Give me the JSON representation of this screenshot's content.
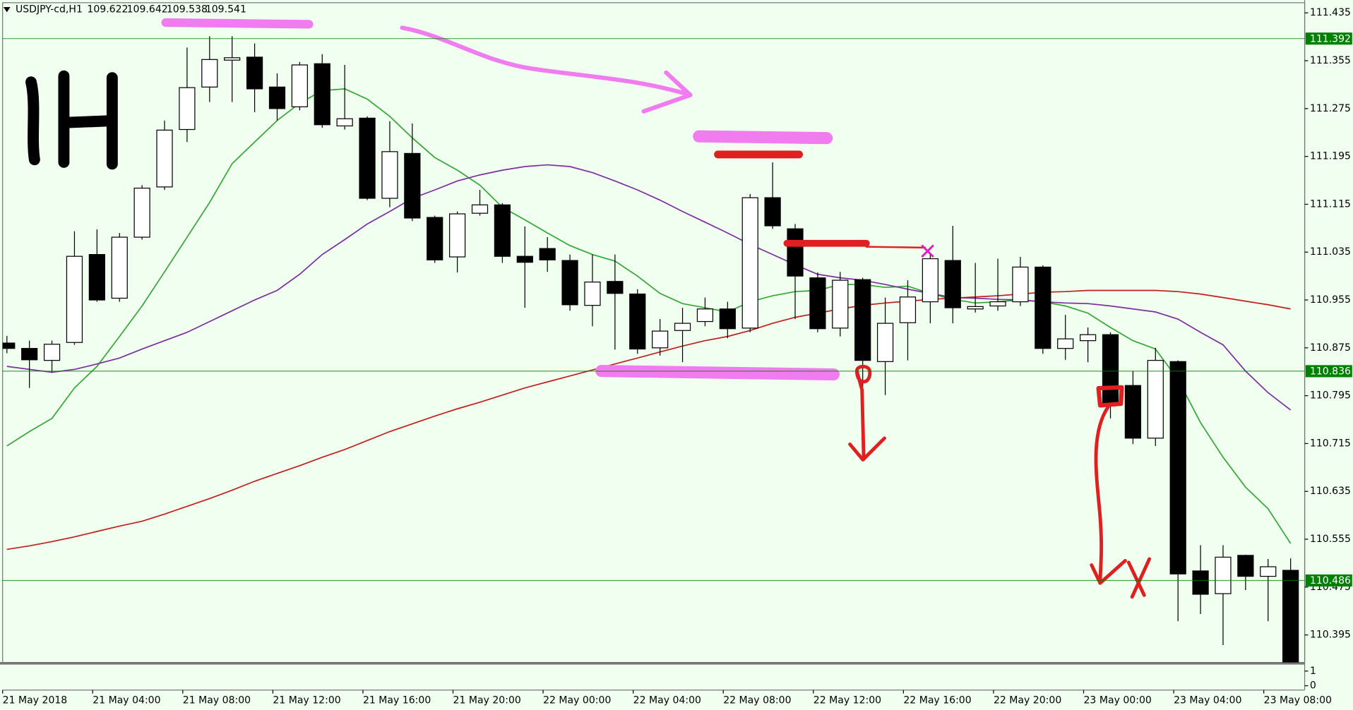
{
  "chart_data": {
    "type": "candlestick",
    "header": {
      "symbol": "USDJPY-cd,H1",
      "ohlc": [
        109.622,
        109.642,
        109.538,
        109.541
      ]
    },
    "categories": [
      "21 May 2018",
      null,
      null,
      null,
      "21 May 04:00",
      null,
      null,
      null,
      "21 May 08:00",
      null,
      null,
      null,
      "21 May 12:00",
      null,
      null,
      null,
      "21 May 16:00",
      null,
      null,
      null,
      "21 May 20:00",
      null,
      null,
      null,
      "22 May 00:00",
      null,
      null,
      null,
      "22 May 04:00",
      null,
      null,
      null,
      "22 May 08:00",
      null,
      null,
      null,
      "22 May 12:00",
      null,
      null,
      null,
      "22 May 16:00",
      null,
      null,
      null,
      "22 May 20:00",
      null,
      null,
      null,
      "23 May 00:00",
      null,
      null,
      null,
      "23 May 04:00",
      null,
      null,
      null,
      "23 May 08:00",
      null
    ],
    "open": [
      110.883,
      110.874,
      110.854,
      110.884,
      111.031,
      110.958,
      111.06,
      111.144,
      111.24,
      111.311,
      111.356,
      111.361,
      111.311,
      111.278,
      111.35,
      111.246,
      111.259,
      111.125,
      111.2,
      111.093,
      111.027,
      111.1,
      111.114,
      111.028,
      111.041,
      111.021,
      110.946,
      110.986,
      110.965,
      110.875,
      110.904,
      110.919,
      110.94,
      110.908,
      111.126,
      111.074,
      110.992,
      110.908,
      110.989,
      110.852,
      110.917,
      110.952,
      111.021,
      110.94,
      110.945,
      110.952,
      111.01,
      110.874,
      110.887,
      110.897,
      110.812,
      110.724,
      110.852,
      110.502,
      110.464,
      110.528,
      110.493,
      110.503
    ],
    "high": [
      110.895,
      110.887,
      110.887,
      111.07,
      111.073,
      111.067,
      111.147,
      111.255,
      111.377,
      111.396,
      111.396,
      111.384,
      111.334,
      111.353,
      111.366,
      111.348,
      111.262,
      111.254,
      111.25,
      111.096,
      111.103,
      111.139,
      111.117,
      111.078,
      111.06,
      111.031,
      111.031,
      111.031,
      110.973,
      110.923,
      110.942,
      110.959,
      110.952,
      111.132,
      111.185,
      111.082,
      111.001,
      111.002,
      110.992,
      110.959,
      110.988,
      111.031,
      111.079,
      111.017,
      111.024,
      111.027,
      111.013,
      110.93,
      110.909,
      110.901,
      110.836,
      110.875,
      110.854,
      110.545,
      110.545,
      110.529,
      110.522,
      110.523
    ],
    "low": [
      110.866,
      110.808,
      110.834,
      110.88,
      110.952,
      110.952,
      111.056,
      111.139,
      111.219,
      111.286,
      111.286,
      111.269,
      111.255,
      111.272,
      111.243,
      111.24,
      111.122,
      111.11,
      111.087,
      111.017,
      111.001,
      111.096,
      111.017,
      110.942,
      111.002,
      110.937,
      110.911,
      110.872,
      110.865,
      110.862,
      110.851,
      110.911,
      110.891,
      110.901,
      111.074,
      110.923,
      110.901,
      110.894,
      110.808,
      110.796,
      110.854,
      110.916,
      110.916,
      110.934,
      110.937,
      110.945,
      110.865,
      110.855,
      110.851,
      110.757,
      110.714,
      110.711,
      110.418,
      110.43,
      110.378,
      110.47,
      110.418,
      110.349
    ],
    "close": [
      110.874,
      110.855,
      110.881,
      111.028,
      110.955,
      111.06,
      111.142,
      111.239,
      111.31,
      111.357,
      111.36,
      111.308,
      111.275,
      111.348,
      111.248,
      111.258,
      111.125,
      111.203,
      111.092,
      111.022,
      111.099,
      111.114,
      111.028,
      111.018,
      111.022,
      110.947,
      110.985,
      110.966,
      110.873,
      110.903,
      110.916,
      110.94,
      110.907,
      111.126,
      111.079,
      110.995,
      110.907,
      110.988,
      110.854,
      110.916,
      110.96,
      111.024,
      110.942,
      110.944,
      110.952,
      111.01,
      110.874,
      110.89,
      110.897,
      110.779,
      110.724,
      110.854,
      110.497,
      110.463,
      110.525,
      110.493,
      110.509,
      110.349
    ],
    "up_color": "#ffffff",
    "down_color": "#000000",
    "background": "#f0fff0",
    "series": [
      {
        "color": "#33a833",
        "values": [
          110.711,
          110.735,
          110.757,
          110.808,
          110.844,
          110.894,
          110.945,
          111.002,
          111.06,
          111.118,
          111.183,
          111.219,
          111.255,
          111.284,
          111.305,
          111.308,
          111.291,
          111.262,
          111.226,
          111.193,
          111.172,
          111.147,
          111.11,
          111.089,
          111.067,
          111.046,
          111.031,
          111.02,
          110.995,
          110.966,
          110.949,
          110.942,
          110.935,
          110.952,
          110.962,
          110.969,
          110.971,
          110.981,
          110.981,
          110.976,
          110.978,
          110.966,
          110.956,
          110.95,
          110.952,
          110.955,
          110.952,
          110.945,
          110.933,
          110.909,
          110.887,
          110.873,
          110.822,
          110.75,
          110.692,
          110.642,
          110.606,
          110.548
        ]
      },
      {
        "color": "#7b2fa0",
        "values": [
          110.844,
          110.839,
          110.834,
          110.839,
          110.848,
          110.858,
          110.873,
          110.887,
          110.901,
          110.919,
          110.937,
          110.955,
          110.971,
          110.998,
          111.031,
          111.056,
          111.082,
          111.103,
          111.125,
          111.139,
          111.154,
          111.164,
          111.172,
          111.178,
          111.181,
          111.178,
          111.168,
          111.154,
          111.139,
          111.122,
          111.103,
          111.085,
          111.067,
          111.048,
          111.031,
          111.014,
          110.998,
          110.992,
          110.988,
          110.981,
          110.973,
          110.966,
          110.959,
          110.958,
          110.956,
          110.955,
          110.952,
          110.95,
          110.949,
          110.945,
          110.94,
          110.935,
          110.923,
          110.901,
          110.88,
          110.836,
          110.8,
          110.771
        ]
      },
      {
        "color": "#c0201a",
        "values": [
          110.538,
          110.544,
          110.551,
          110.559,
          110.568,
          110.577,
          110.585,
          110.597,
          110.61,
          110.623,
          110.637,
          110.652,
          110.665,
          110.678,
          110.692,
          110.705,
          110.72,
          110.735,
          110.748,
          110.761,
          110.773,
          110.784,
          110.796,
          110.808,
          110.818,
          110.828,
          110.838,
          110.848,
          110.858,
          110.868,
          110.878,
          110.887,
          110.894,
          110.904,
          110.916,
          110.926,
          110.933,
          110.94,
          110.946,
          110.95,
          110.953,
          110.956,
          110.958,
          110.96,
          110.962,
          110.965,
          110.968,
          110.969,
          110.971,
          110.971,
          110.971,
          110.971,
          110.969,
          110.965,
          110.959,
          110.953,
          110.947,
          110.94
        ]
      }
    ],
    "levels": [
      {
        "value": 111.392,
        "color": "#008000"
      },
      {
        "value": 110.836,
        "color": "#008000"
      },
      {
        "value": 110.486,
        "color": "#008000"
      }
    ],
    "ylim": [
      110.349,
      111.452
    ],
    "yticks": [
      111.435,
      111.355,
      111.275,
      111.195,
      111.115,
      111.035,
      110.955,
      110.875,
      110.795,
      110.715,
      110.635,
      110.555,
      110.475,
      110.395
    ],
    "grid": false,
    "indicator_yticks": [
      1,
      0
    ]
  }
}
